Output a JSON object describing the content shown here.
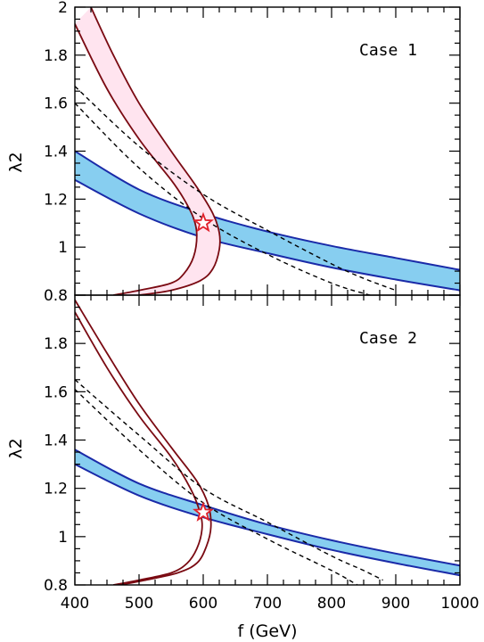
{
  "chart_data": [
    {
      "type": "line",
      "panel": "top",
      "annotation": "Case 1",
      "xlabel": "f (GeV)",
      "ylabel": "λ2",
      "xlim": [
        400,
        1000
      ],
      "ylim": [
        0.8,
        2.0
      ],
      "x_ticks": [
        "400",
        "500",
        "600",
        "700",
        "800",
        "900",
        "1000"
      ],
      "y_ticks": [
        "0.8",
        "1",
        "1.2",
        "1.4",
        "1.6",
        "1.8",
        "2"
      ],
      "blue_band_color": "#87CEF0",
      "blue_line_color": "#1a2aa8",
      "pink_band_color": "#ffe4ef",
      "red_line_color": "#7a0a12",
      "star": {
        "x": 600,
        "y": 1.1,
        "color": "#e0202a"
      },
      "blue_band_upper": [
        [
          400,
          1.4
        ],
        [
          500,
          1.24
        ],
        [
          600,
          1.14
        ],
        [
          700,
          1.065
        ],
        [
          800,
          1.005
        ],
        [
          900,
          0.955
        ],
        [
          1000,
          0.905
        ]
      ],
      "blue_band_lower": [
        [
          400,
          1.28
        ],
        [
          500,
          1.14
        ],
        [
          600,
          1.04
        ],
        [
          700,
          0.975
        ],
        [
          800,
          0.915
        ],
        [
          900,
          0.865
        ],
        [
          1000,
          0.82
        ]
      ],
      "red_band_left": [
        [
          400,
          1.93
        ],
        [
          450,
          1.66
        ],
        [
          500,
          1.45
        ],
        [
          550,
          1.28
        ],
        [
          570,
          1.2
        ],
        [
          585,
          1.12
        ],
        [
          590,
          1.05
        ],
        [
          585,
          0.96
        ],
        [
          570,
          0.89
        ],
        [
          550,
          0.85
        ],
        [
          500,
          0.82
        ],
        [
          460,
          0.8
        ]
      ],
      "red_band_right": [
        [
          425,
          2.0
        ],
        [
          460,
          1.8
        ],
        [
          500,
          1.6
        ],
        [
          550,
          1.4
        ],
        [
          590,
          1.25
        ],
        [
          615,
          1.14
        ],
        [
          625,
          1.06
        ],
        [
          625,
          0.99
        ],
        [
          615,
          0.91
        ],
        [
          595,
          0.86
        ],
        [
          550,
          0.82
        ],
        [
          500,
          0.8
        ]
      ],
      "dashed_upper": [
        [
          400,
          1.67
        ],
        [
          500,
          1.42
        ],
        [
          600,
          1.22
        ],
        [
          700,
          1.07
        ],
        [
          800,
          0.93
        ],
        [
          850,
          0.87
        ],
        [
          900,
          0.82
        ]
      ],
      "dashed_lower": [
        [
          400,
          1.6
        ],
        [
          500,
          1.33
        ],
        [
          600,
          1.12
        ],
        [
          700,
          0.97
        ],
        [
          800,
          0.85
        ],
        [
          860,
          0.8
        ]
      ]
    },
    {
      "type": "line",
      "panel": "bottom",
      "annotation": "Case 2",
      "xlabel": "f (GeV)",
      "ylabel": "λ2",
      "xlim": [
        400,
        1000
      ],
      "ylim": [
        0.8,
        2.0
      ],
      "x_ticks": [
        "400",
        "500",
        "600",
        "700",
        "800",
        "900",
        "1000"
      ],
      "y_ticks": [
        "0.8",
        "1",
        "1.2",
        "1.4",
        "1.6",
        "1.8"
      ],
      "blue_band_color": "#87CEF0",
      "blue_line_color": "#1a2aa8",
      "red_line_color": "#7a0a12",
      "star": {
        "x": 600,
        "y": 1.1,
        "color": "#e0202a"
      },
      "blue_band_upper": [
        [
          400,
          1.36
        ],
        [
          500,
          1.22
        ],
        [
          600,
          1.13
        ],
        [
          700,
          1.05
        ],
        [
          800,
          0.985
        ],
        [
          900,
          0.93
        ],
        [
          1000,
          0.88
        ]
      ],
      "blue_band_lower": [
        [
          400,
          1.3
        ],
        [
          500,
          1.17
        ],
        [
          600,
          1.08
        ],
        [
          700,
          1.01
        ],
        [
          800,
          0.945
        ],
        [
          900,
          0.89
        ],
        [
          1000,
          0.84
        ]
      ],
      "red_band_left": [
        [
          400,
          1.93
        ],
        [
          450,
          1.7
        ],
        [
          500,
          1.5
        ],
        [
          550,
          1.33
        ],
        [
          580,
          1.2
        ],
        [
          595,
          1.1
        ],
        [
          598,
          1.03
        ],
        [
          590,
          0.95
        ],
        [
          575,
          0.89
        ],
        [
          550,
          0.85
        ],
        [
          500,
          0.82
        ],
        [
          460,
          0.8
        ]
      ],
      "red_band_right": [
        [
          400,
          1.98
        ],
        [
          450,
          1.76
        ],
        [
          500,
          1.55
        ],
        [
          550,
          1.37
        ],
        [
          590,
          1.23
        ],
        [
          608,
          1.13
        ],
        [
          612,
          1.04
        ],
        [
          605,
          0.96
        ],
        [
          590,
          0.89
        ],
        [
          560,
          0.85
        ],
        [
          510,
          0.82
        ],
        [
          470,
          0.8
        ]
      ],
      "dashed_upper": [
        [
          400,
          1.65
        ],
        [
          500,
          1.42
        ],
        [
          600,
          1.2
        ],
        [
          700,
          1.06
        ],
        [
          800,
          0.92
        ],
        [
          850,
          0.86
        ],
        [
          880,
          0.82
        ]
      ],
      "dashed_lower": [
        [
          400,
          1.61
        ],
        [
          500,
          1.36
        ],
        [
          600,
          1.14
        ],
        [
          700,
          0.99
        ],
        [
          800,
          0.86
        ],
        [
          840,
          0.8
        ]
      ]
    }
  ]
}
